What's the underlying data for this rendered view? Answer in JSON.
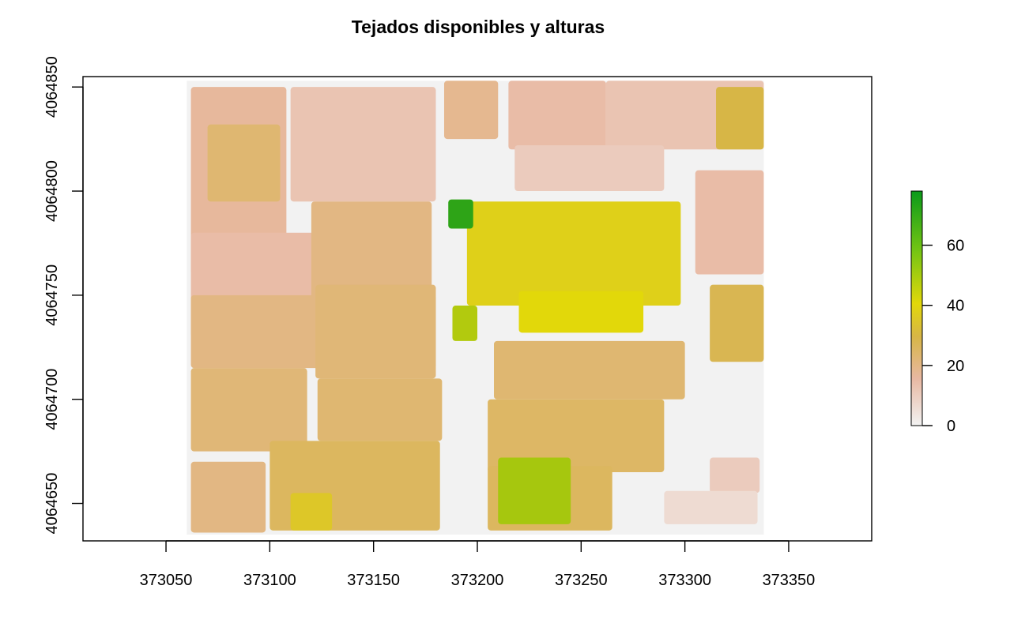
{
  "chart_data": {
    "type": "heatmap",
    "title": "Tejados disponibles y alturas",
    "xlabel": "",
    "ylabel": "",
    "xlim": [
      373010,
      373390
    ],
    "ylim": [
      4064632,
      4064855
    ],
    "x_ticks": [
      373050,
      373100,
      373150,
      373200,
      373250,
      373300,
      373350
    ],
    "y_ticks": [
      4064650,
      4064700,
      4064750,
      4064800,
      4064850
    ],
    "raster_extent": {
      "x": [
        373060,
        373338
      ],
      "y": [
        4064635,
        4064853
      ]
    },
    "legend": {
      "placement": "right",
      "range": [
        0,
        78
      ],
      "ticks": [
        0,
        20,
        40,
        60
      ]
    },
    "colors": {
      "zero": "#f2f2f2",
      "low": "#e8b8a2",
      "mid": "#d7b646",
      "high": "#e2d80a",
      "max": "#0a9a1a"
    },
    "buildings": [
      {
        "x": [
          373062,
          373108
        ],
        "y": [
          4064760,
          4064850
        ],
        "value": 16
      },
      {
        "x": [
          373070,
          373105
        ],
        "y": [
          4064795,
          4064832
        ],
        "value": 23
      },
      {
        "x": [
          373110,
          373180
        ],
        "y": [
          4064795,
          4064850
        ],
        "value": 12
      },
      {
        "x": [
          373062,
          373123
        ],
        "y": [
          4064730,
          4064780
        ],
        "value": 14
      },
      {
        "x": [
          373120,
          373178
        ],
        "y": [
          4064740,
          4064795
        ],
        "value": 20
      },
      {
        "x": [
          373062,
          373180
        ],
        "y": [
          4064715,
          4064750
        ],
        "value": 20
      },
      {
        "x": [
          373122,
          373180
        ],
        "y": [
          4064710,
          4064755
        ],
        "value": 22
      },
      {
        "x": [
          373062,
          373118
        ],
        "y": [
          4064675,
          4064715
        ],
        "value": 22
      },
      {
        "x": [
          373123,
          373183
        ],
        "y": [
          4064680,
          4064710
        ],
        "value": 23
      },
      {
        "x": [
          373062,
          373098
        ],
        "y": [
          4064636,
          4064670
        ],
        "value": 20
      },
      {
        "x": [
          373100,
          373182
        ],
        "y": [
          4064637,
          4064680
        ],
        "value": 26
      },
      {
        "x": [
          373110,
          373130
        ],
        "y": [
          4064637,
          4064655
        ],
        "value": 36
      },
      {
        "x": [
          373184,
          373210
        ],
        "y": [
          4064825,
          4064853
        ],
        "value": 18
      },
      {
        "x": [
          373215,
          373262
        ],
        "y": [
          4064820,
          4064853
        ],
        "value": 14
      },
      {
        "x": [
          373262,
          373338
        ],
        "y": [
          4064820,
          4064853
        ],
        "value": 12
      },
      {
        "x": [
          373218,
          373290
        ],
        "y": [
          4064800,
          4064822
        ],
        "value": 10
      },
      {
        "x": [
          373195,
          373298
        ],
        "y": [
          4064745,
          4064795
        ],
        "value": 39
      },
      {
        "x": [
          373220,
          373280
        ],
        "y": [
          4064732,
          4064752
        ],
        "value": 42
      },
      {
        "x": [
          373186,
          373198
        ],
        "y": [
          4064782,
          4064796
        ],
        "value": 72
      },
      {
        "x": [
          373188,
          373200
        ],
        "y": [
          4064728,
          4064745
        ],
        "value": 50
      },
      {
        "x": [
          373305,
          373338
        ],
        "y": [
          4064760,
          4064810
        ],
        "value": 14
      },
      {
        "x": [
          373315,
          373338
        ],
        "y": [
          4064820,
          4064850
        ],
        "value": 30
      },
      {
        "x": [
          373312,
          373338
        ],
        "y": [
          4064718,
          4064755
        ],
        "value": 28
      },
      {
        "x": [
          373208,
          373300
        ],
        "y": [
          4064700,
          4064728
        ],
        "value": 23
      },
      {
        "x": [
          373205,
          373290
        ],
        "y": [
          4064665,
          4064700
        ],
        "value": 25
      },
      {
        "x": [
          373205,
          373265
        ],
        "y": [
          4064637,
          4064668
        ],
        "value": 26
      },
      {
        "x": [
          373210,
          373245
        ],
        "y": [
          4064640,
          4064672
        ],
        "value": 52
      },
      {
        "x": [
          373312,
          373336
        ],
        "y": [
          4064655,
          4064672
        ],
        "value": 10
      },
      {
        "x": [
          373290,
          373335
        ],
        "y": [
          4064640,
          4064656
        ],
        "value": 6
      }
    ]
  }
}
